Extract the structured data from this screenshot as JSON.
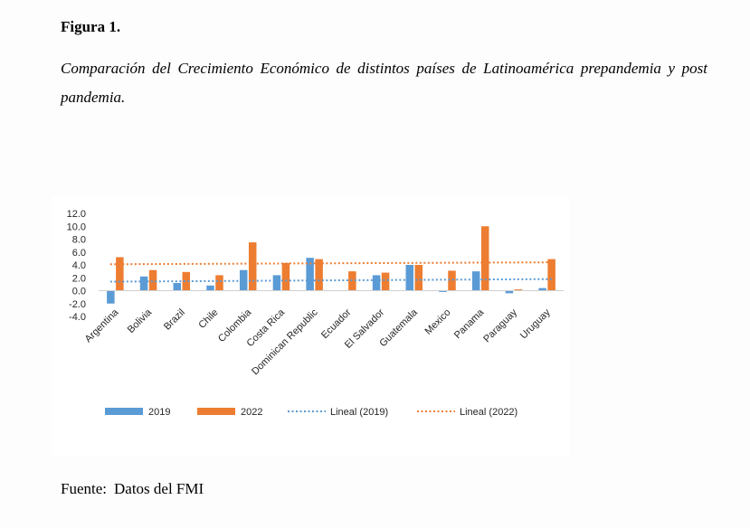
{
  "figure": {
    "label": "Figura 1.",
    "caption": "Comparación del Crecimiento Económico de distintos países de Latinoamérica prepandemia y post pandemia."
  },
  "source": {
    "label": "Fuente:",
    "text": "Datos del FMI"
  },
  "chart_data": {
    "type": "bar",
    "title": "",
    "xlabel": "",
    "ylabel": "",
    "ylim": [
      -4.0,
      12.0
    ],
    "yticks": [
      "12.0",
      "10.0",
      "8.0",
      "6.0",
      "4.0",
      "2.0",
      "0.0",
      "-2.0",
      "-4.0"
    ],
    "categories": [
      "Argentina",
      "Bolivia",
      "Brazil",
      "Chile",
      "Colombia",
      "Costa Rica",
      "Dominican Republic",
      "Ecuador",
      "El Salvador",
      "Guatemala",
      "Mexico",
      "Panama",
      "Paraguay",
      "Uruguay"
    ],
    "series": [
      {
        "name": "2019",
        "color": "#5b9bd5",
        "values": [
          -2.0,
          2.2,
          1.2,
          0.8,
          3.2,
          2.4,
          5.1,
          0.0,
          2.4,
          4.0,
          -0.2,
          3.0,
          -0.4,
          0.4
        ]
      },
      {
        "name": "2022",
        "color": "#ed7d31",
        "values": [
          5.2,
          3.2,
          2.9,
          2.4,
          7.5,
          4.3,
          4.9,
          3.0,
          2.8,
          4.0,
          3.1,
          10.0,
          0.2,
          4.9
        ]
      }
    ],
    "trendlines": [
      {
        "name": "Lineal (2019)",
        "color": "#5b9bd5",
        "start": 1.4,
        "end": 1.8
      },
      {
        "name": "Lineal (2022)",
        "color": "#ed7d31",
        "start": 4.1,
        "end": 4.4
      }
    ],
    "legend": [
      "2019",
      "2022",
      "Lineal (2019)",
      "Lineal (2022)"
    ],
    "legend_position": "bottom",
    "grid": false
  }
}
